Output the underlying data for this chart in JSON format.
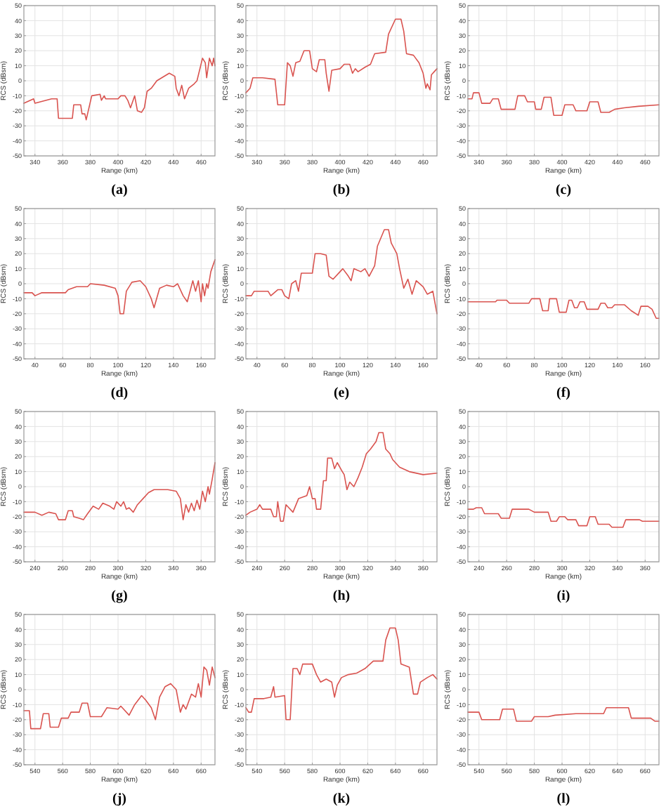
{
  "chart_data": [
    {
      "type": "line",
      "title": "(a)",
      "xlabel": "Range (km)",
      "ylabel": "RCS (dBsm)",
      "xlim": [
        332,
        470
      ],
      "xticks": [
        340,
        360,
        380,
        400,
        420,
        440,
        460
      ],
      "ylim": [
        -50,
        50
      ],
      "yticks": [
        -50,
        -40,
        -30,
        -20,
        -10,
        0,
        10,
        20,
        30,
        40,
        50
      ],
      "grid": true,
      "x": [
        332,
        339,
        340,
        352,
        356,
        357,
        367,
        368,
        373,
        374,
        376,
        377,
        381,
        387,
        388,
        390,
        391,
        400,
        402,
        405,
        407,
        409,
        412,
        414,
        417,
        419,
        421,
        424,
        428,
        437,
        441,
        442,
        444,
        446,
        448,
        451,
        455,
        457,
        461,
        463,
        464,
        466,
        468,
        469,
        470
      ],
      "series": [
        {
          "color": "#d9534f",
          "values": [
            -15,
            -12,
            -15,
            -12,
            -12,
            -25,
            -25,
            -16,
            -16,
            -22,
            -22,
            -26,
            -10,
            -9,
            -13,
            -10,
            -12,
            -12,
            -10,
            -10,
            -13,
            -18,
            -10,
            -20,
            -21,
            -18,
            -7,
            -5,
            0,
            5,
            3,
            -5,
            -10,
            -3,
            -12,
            -5,
            -2,
            0,
            15,
            12,
            2,
            15,
            10,
            15,
            10
          ]
        }
      ]
    },
    {
      "type": "line",
      "title": "(b)",
      "xlabel": "Range (km)",
      "ylabel": "RCS (dBsm)",
      "xlim": [
        332,
        470
      ],
      "xticks": [
        340,
        360,
        380,
        400,
        420,
        440,
        460
      ],
      "ylim": [
        -50,
        50
      ],
      "yticks": [
        -50,
        -40,
        -30,
        -20,
        -10,
        0,
        10,
        20,
        30,
        40,
        50
      ],
      "grid": true,
      "x": [
        332,
        335,
        337,
        344,
        353,
        355,
        360,
        362,
        364,
        366,
        368,
        371,
        374,
        378,
        380,
        383,
        385,
        389,
        390,
        392,
        394,
        400,
        403,
        407,
        409,
        411,
        413,
        418,
        422,
        425,
        433,
        435,
        440,
        444,
        446,
        448,
        453,
        457,
        460,
        462,
        463,
        465,
        466,
        468,
        470
      ],
      "series": [
        {
          "color": "#d9534f",
          "values": [
            -8,
            -5,
            2,
            2,
            1,
            -16,
            -16,
            12,
            10,
            3,
            12,
            13,
            20,
            20,
            8,
            6,
            14,
            14,
            5,
            -7,
            7,
            8,
            11,
            11,
            5,
            8,
            6,
            9,
            11,
            18,
            19,
            31,
            41,
            41,
            33,
            18,
            17,
            12,
            5,
            -5,
            -2,
            -6,
            4,
            6,
            8
          ]
        }
      ]
    },
    {
      "type": "line",
      "title": "(c)",
      "xlabel": "Range (km)",
      "ylabel": "RCS (dBsm)",
      "xlim": [
        332,
        470
      ],
      "xticks": [
        340,
        360,
        380,
        400,
        420,
        440,
        460
      ],
      "ylim": [
        -50,
        50
      ],
      "yticks": [
        -50,
        -40,
        -30,
        -20,
        -10,
        0,
        10,
        20,
        30,
        40,
        50
      ],
      "grid": true,
      "x": [
        332,
        335,
        336,
        340,
        342,
        348,
        350,
        354,
        356,
        366,
        368,
        373,
        375,
        380,
        381,
        385,
        387,
        392,
        394,
        400,
        402,
        408,
        410,
        418,
        420,
        426,
        428,
        434,
        438,
        445,
        455,
        470
      ],
      "series": [
        {
          "color": "#d9534f",
          "values": [
            -12,
            -12,
            -8,
            -8,
            -15,
            -15,
            -12,
            -12,
            -19,
            -19,
            -10,
            -10,
            -14,
            -14,
            -19,
            -19,
            -11,
            -11,
            -23,
            -23,
            -16,
            -16,
            -20,
            -20,
            -14,
            -14,
            -21,
            -21,
            -19,
            -18,
            -17,
            -16
          ]
        }
      ]
    },
    {
      "type": "line",
      "title": "(d)",
      "xlabel": "Range (km)",
      "ylabel": "RCS (dBsm)",
      "xlim": [
        32,
        170
      ],
      "xticks": [
        40,
        60,
        80,
        100,
        120,
        140,
        160
      ],
      "ylim": [
        -50,
        50
      ],
      "yticks": [
        -50,
        -40,
        -30,
        -20,
        -10,
        0,
        10,
        20,
        30,
        40,
        50
      ],
      "grid": true,
      "x": [
        32,
        38,
        40,
        45,
        62,
        64,
        70,
        78,
        80,
        90,
        98,
        100,
        101.5,
        104,
        106,
        110,
        116,
        120,
        124,
        126,
        130,
        135,
        140,
        143,
        147,
        150,
        152,
        154,
        156,
        158,
        160,
        161,
        162.5,
        164,
        165,
        167,
        170
      ],
      "series": [
        {
          "color": "#d9534f",
          "values": [
            -6,
            -6,
            -8,
            -6,
            -6,
            -4,
            -2,
            -2,
            0,
            -1,
            -3,
            -8,
            -20,
            -20,
            -5,
            1,
            2,
            -2,
            -10,
            -16,
            -3,
            -1,
            -2,
            0,
            -8,
            -12,
            -5,
            2,
            -5,
            2,
            -12,
            0,
            -8,
            0,
            -3,
            8,
            16
          ]
        }
      ]
    },
    {
      "type": "line",
      "title": "(e)",
      "xlabel": "Range (km)",
      "ylabel": "RCS (dBsm)",
      "xlim": [
        32,
        170
      ],
      "xticks": [
        40,
        60,
        80,
        100,
        120,
        140,
        160
      ],
      "ylim": [
        -50,
        50
      ],
      "yticks": [
        -50,
        -40,
        -30,
        -20,
        -10,
        0,
        10,
        20,
        30,
        40,
        50
      ],
      "grid": true,
      "x": [
        32,
        36,
        38,
        48,
        50,
        55,
        58,
        60,
        63,
        65,
        68,
        70,
        72,
        80,
        82,
        86,
        90,
        92,
        95,
        100,
        102,
        106,
        108,
        110,
        115,
        118,
        121,
        125,
        127,
        132,
        135,
        137,
        141,
        143,
        146,
        149,
        152,
        155,
        160,
        163,
        167,
        170
      ],
      "series": [
        {
          "color": "#d9534f",
          "values": [
            -8,
            -8,
            -5,
            -5,
            -8,
            -4,
            -4,
            -8,
            -10,
            0,
            2,
            -5,
            7,
            7,
            20,
            20,
            19,
            5,
            3,
            8,
            10,
            5,
            2,
            10,
            8,
            10,
            5,
            12,
            25,
            36,
            36,
            27,
            20,
            10,
            -3,
            3,
            -7,
            2,
            -2,
            -7,
            -5,
            -20
          ]
        }
      ]
    },
    {
      "type": "line",
      "title": "(f)",
      "xlabel": "Range (km)",
      "ylabel": "RCS (dBsm)",
      "xlim": [
        32,
        170
      ],
      "xticks": [
        40,
        60,
        80,
        100,
        120,
        140,
        160
      ],
      "ylim": [
        -50,
        50
      ],
      "yticks": [
        -50,
        -40,
        -30,
        -20,
        -10,
        0,
        10,
        20,
        30,
        40,
        50
      ],
      "grid": true,
      "x": [
        32,
        52,
        53,
        60,
        62,
        76,
        78,
        84,
        86,
        90,
        91,
        96,
        98,
        103,
        105,
        107,
        109,
        111,
        113,
        116,
        118,
        126,
        128,
        131,
        133,
        136,
        138,
        145,
        150,
        155,
        157,
        162,
        165,
        168,
        170
      ],
      "series": [
        {
          "color": "#d9534f",
          "values": [
            -12,
            -12,
            -11,
            -11,
            -13,
            -13,
            -10,
            -10,
            -18,
            -18,
            -10,
            -10,
            -19,
            -19,
            -11,
            -11,
            -16,
            -16,
            -12,
            -12,
            -17,
            -17,
            -13,
            -13,
            -16,
            -16,
            -14,
            -14,
            -18,
            -21,
            -15,
            -15,
            -17,
            -23,
            -23
          ]
        }
      ]
    },
    {
      "type": "line",
      "title": "(g)",
      "xlabel": "Range (km)",
      "ylabel": "RCS (dBsm)",
      "xlim": [
        232,
        370
      ],
      "xticks": [
        240,
        260,
        280,
        300,
        320,
        340,
        360
      ],
      "ylim": [
        -50,
        50
      ],
      "yticks": [
        -50,
        -40,
        -30,
        -20,
        -10,
        0,
        10,
        20,
        30,
        40,
        50
      ],
      "grid": true,
      "x": [
        232,
        240,
        245,
        250,
        255,
        257,
        262,
        264,
        267,
        268,
        272,
        275,
        278,
        282,
        286,
        289,
        294,
        297,
        299,
        302,
        304,
        306,
        308,
        311,
        314,
        318,
        322,
        326,
        336,
        342,
        345,
        347,
        349,
        351,
        353,
        355,
        357,
        359,
        361,
        363,
        365,
        366,
        368,
        370
      ],
      "series": [
        {
          "color": "#d9534f",
          "values": [
            -17,
            -17,
            -19,
            -17,
            -18,
            -22,
            -22,
            -16,
            -16,
            -20,
            -21,
            -22,
            -18,
            -13,
            -15,
            -11,
            -13,
            -15,
            -10,
            -13,
            -10,
            -15,
            -14,
            -17,
            -12,
            -8,
            -4,
            -2,
            -2,
            -3,
            -8,
            -22,
            -12,
            -17,
            -11,
            -16,
            -9,
            -15,
            -3,
            -10,
            0,
            -5,
            5,
            16
          ]
        }
      ]
    },
    {
      "type": "line",
      "title": "(h)",
      "xlabel": "Range (km)",
      "ylabel": "RCS (dBsm)",
      "xlim": [
        232,
        370
      ],
      "xticks": [
        240,
        260,
        280,
        300,
        320,
        340,
        360
      ],
      "ylim": [
        -50,
        50
      ],
      "yticks": [
        -50,
        -40,
        -30,
        -20,
        -10,
        0,
        10,
        20,
        30,
        40,
        50
      ],
      "grid": true,
      "x": [
        232,
        235,
        240,
        242,
        244,
        250,
        252,
        254,
        255,
        257,
        259,
        261,
        263,
        266,
        270,
        276,
        278,
        280,
        282,
        283,
        286,
        288,
        290,
        291,
        294,
        296,
        298,
        301,
        303,
        305,
        307,
        310,
        313,
        316,
        319,
        322,
        326,
        328,
        331,
        333,
        336,
        338,
        343,
        350,
        360,
        370
      ],
      "series": [
        {
          "color": "#d9534f",
          "values": [
            -19,
            -17,
            -15,
            -12,
            -15,
            -15,
            -20,
            -20,
            -10,
            -23,
            -23,
            -12,
            -14,
            -17,
            -8,
            -6,
            0,
            -8,
            -8,
            -15,
            -15,
            4,
            4,
            19,
            19,
            12,
            16,
            11,
            8,
            -2,
            3,
            0,
            6,
            13,
            22,
            25,
            30,
            36,
            36,
            25,
            22,
            18,
            13,
            10,
            8,
            9
          ]
        }
      ]
    },
    {
      "type": "line",
      "title": "(i)",
      "xlabel": "Range (km)",
      "ylabel": "RCS (dBsm)",
      "xlim": [
        232,
        370
      ],
      "xticks": [
        240,
        260,
        280,
        300,
        320,
        340,
        360
      ],
      "ylim": [
        -50,
        50
      ],
      "yticks": [
        -50,
        -40,
        -30,
        -20,
        -10,
        0,
        10,
        20,
        30,
        40,
        50
      ],
      "grid": true,
      "x": [
        232,
        236,
        238,
        242,
        244,
        254,
        256,
        262,
        264,
        276,
        280,
        290,
        292,
        296,
        298,
        302,
        304,
        310,
        312,
        318,
        320,
        324,
        326,
        334,
        336,
        344,
        346,
        356,
        358,
        370
      ],
      "series": [
        {
          "color": "#d9534f",
          "values": [
            -15,
            -15,
            -14,
            -14,
            -18,
            -18,
            -21,
            -21,
            -15,
            -15,
            -17,
            -17,
            -23,
            -23,
            -20,
            -20,
            -22,
            -22,
            -26,
            -26,
            -20,
            -20,
            -25,
            -25,
            -27,
            -27,
            -22,
            -22,
            -23,
            -23
          ]
        }
      ]
    },
    {
      "type": "line",
      "title": "(j)",
      "xlabel": "Range (km)",
      "ylabel": "RCS (dBsm)",
      "xlim": [
        532,
        670
      ],
      "xticks": [
        540,
        560,
        580,
        600,
        620,
        640,
        660
      ],
      "ylim": [
        -50,
        50
      ],
      "yticks": [
        -50,
        -40,
        -30,
        -20,
        -10,
        0,
        10,
        20,
        30,
        40,
        50
      ],
      "grid": true,
      "x": [
        532,
        536,
        537,
        544,
        546,
        550,
        551,
        557,
        559,
        564,
        566,
        572,
        574,
        578,
        580,
        588,
        592,
        600,
        602,
        608,
        612,
        617,
        620,
        624,
        627,
        630,
        634,
        638,
        642,
        645,
        647,
        649,
        653,
        656,
        658,
        660,
        662,
        664,
        666,
        668,
        670
      ],
      "series": [
        {
          "color": "#d9534f",
          "values": [
            -14,
            -14,
            -26,
            -26,
            -16,
            -16,
            -25,
            -25,
            -19,
            -19,
            -15,
            -15,
            -9,
            -9,
            -18,
            -18,
            -12,
            -13,
            -11,
            -17,
            -10,
            -4,
            -7,
            -12,
            -20,
            -5,
            2,
            4,
            0,
            -15,
            -10,
            -13,
            -3,
            -5,
            4,
            -5,
            15,
            13,
            3,
            15,
            8
          ]
        }
      ]
    },
    {
      "type": "line",
      "title": "(k)",
      "xlabel": "Range (km)",
      "ylabel": "RCS (dBsm)",
      "xlim": [
        532,
        670
      ],
      "xticks": [
        540,
        560,
        580,
        600,
        620,
        640,
        660
      ],
      "ylim": [
        -50,
        50
      ],
      "yticks": [
        -50,
        -40,
        -30,
        -20,
        -10,
        0,
        10,
        20,
        30,
        40,
        50
      ],
      "grid": true,
      "x": [
        532,
        534,
        536,
        538,
        545,
        550,
        552,
        553,
        560,
        561,
        564,
        566,
        569,
        571,
        573,
        580,
        583,
        586,
        590,
        594,
        596,
        598,
        601,
        606,
        612,
        618,
        624,
        631,
        633,
        636,
        640,
        642,
        644,
        650,
        653,
        656,
        658,
        663,
        667,
        670
      ],
      "series": [
        {
          "color": "#d9534f",
          "values": [
            -12,
            -15,
            -15,
            -6,
            -6,
            -5,
            2,
            -5,
            -4,
            -20,
            -20,
            14,
            14,
            10,
            17,
            17,
            10,
            5,
            7,
            5,
            -5,
            3,
            8,
            10,
            11,
            14,
            19,
            19,
            33,
            41,
            41,
            33,
            17,
            15,
            -3,
            -3,
            5,
            8,
            10,
            7
          ]
        }
      ]
    },
    {
      "type": "line",
      "title": "(l)",
      "xlabel": "Range (km)",
      "ylabel": "RCS (dBsm)",
      "xlim": [
        532,
        670
      ],
      "xticks": [
        540,
        560,
        580,
        600,
        620,
        640,
        660
      ],
      "ylim": [
        -50,
        50
      ],
      "yticks": [
        -50,
        -40,
        -30,
        -20,
        -10,
        0,
        10,
        20,
        30,
        40,
        50
      ],
      "grid": true,
      "x": [
        532,
        540,
        542,
        555,
        557,
        565,
        567,
        578,
        580,
        590,
        595,
        610,
        630,
        632,
        648,
        650,
        664,
        667,
        670
      ],
      "series": [
        {
          "color": "#d9534f",
          "values": [
            -15,
            -15,
            -20,
            -20,
            -13,
            -13,
            -21,
            -21,
            -18,
            -18,
            -17,
            -16,
            -16,
            -12,
            -12,
            -19,
            -19,
            -21,
            -21
          ]
        }
      ]
    }
  ]
}
